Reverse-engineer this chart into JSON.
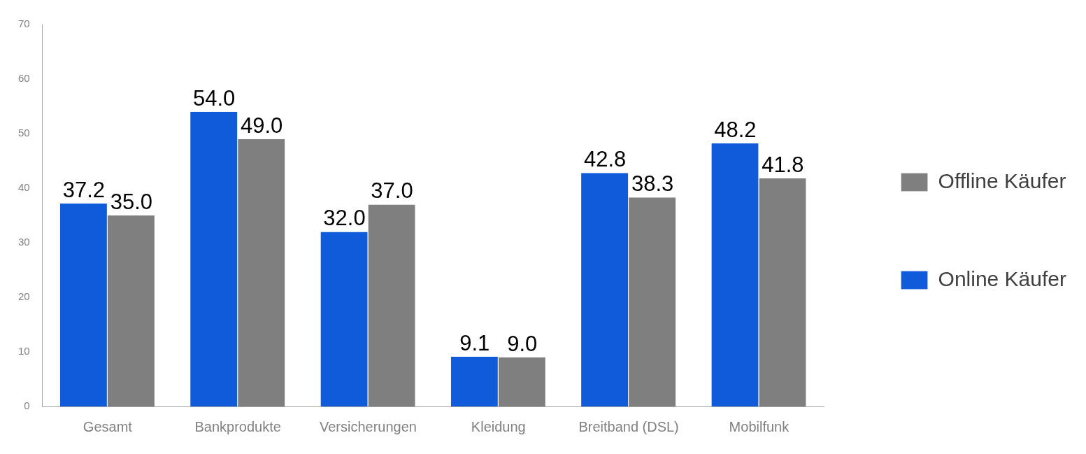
{
  "chart_data": {
    "type": "bar",
    "categories": [
      "Gesamt",
      "Bankprodukte",
      "Versicherungen",
      "Kleidung",
      "Breitband (DSL)",
      "Mobilfunk"
    ],
    "series": [
      {
        "name": "Online Käufer",
        "color": "#0f5bd9",
        "values": [
          37.2,
          54.0,
          32.0,
          9.1,
          42.8,
          48.2
        ],
        "value_labels": [
          "37.2",
          "54.0",
          "32.0",
          "9.1",
          "42.8",
          "48.2"
        ]
      },
      {
        "name": "Offline Käufer",
        "color": "#7f7f7f",
        "values": [
          35.0,
          49.0,
          37.0,
          9.0,
          38.3,
          41.8
        ],
        "value_labels": [
          "35.0",
          "49.0",
          "37.0",
          "9.0",
          "38.3",
          "41.8"
        ]
      }
    ],
    "ylim": [
      0,
      70
    ],
    "yticks": [
      0,
      10,
      20,
      30,
      40,
      50,
      60,
      70
    ],
    "grid": false,
    "legend": "right"
  }
}
